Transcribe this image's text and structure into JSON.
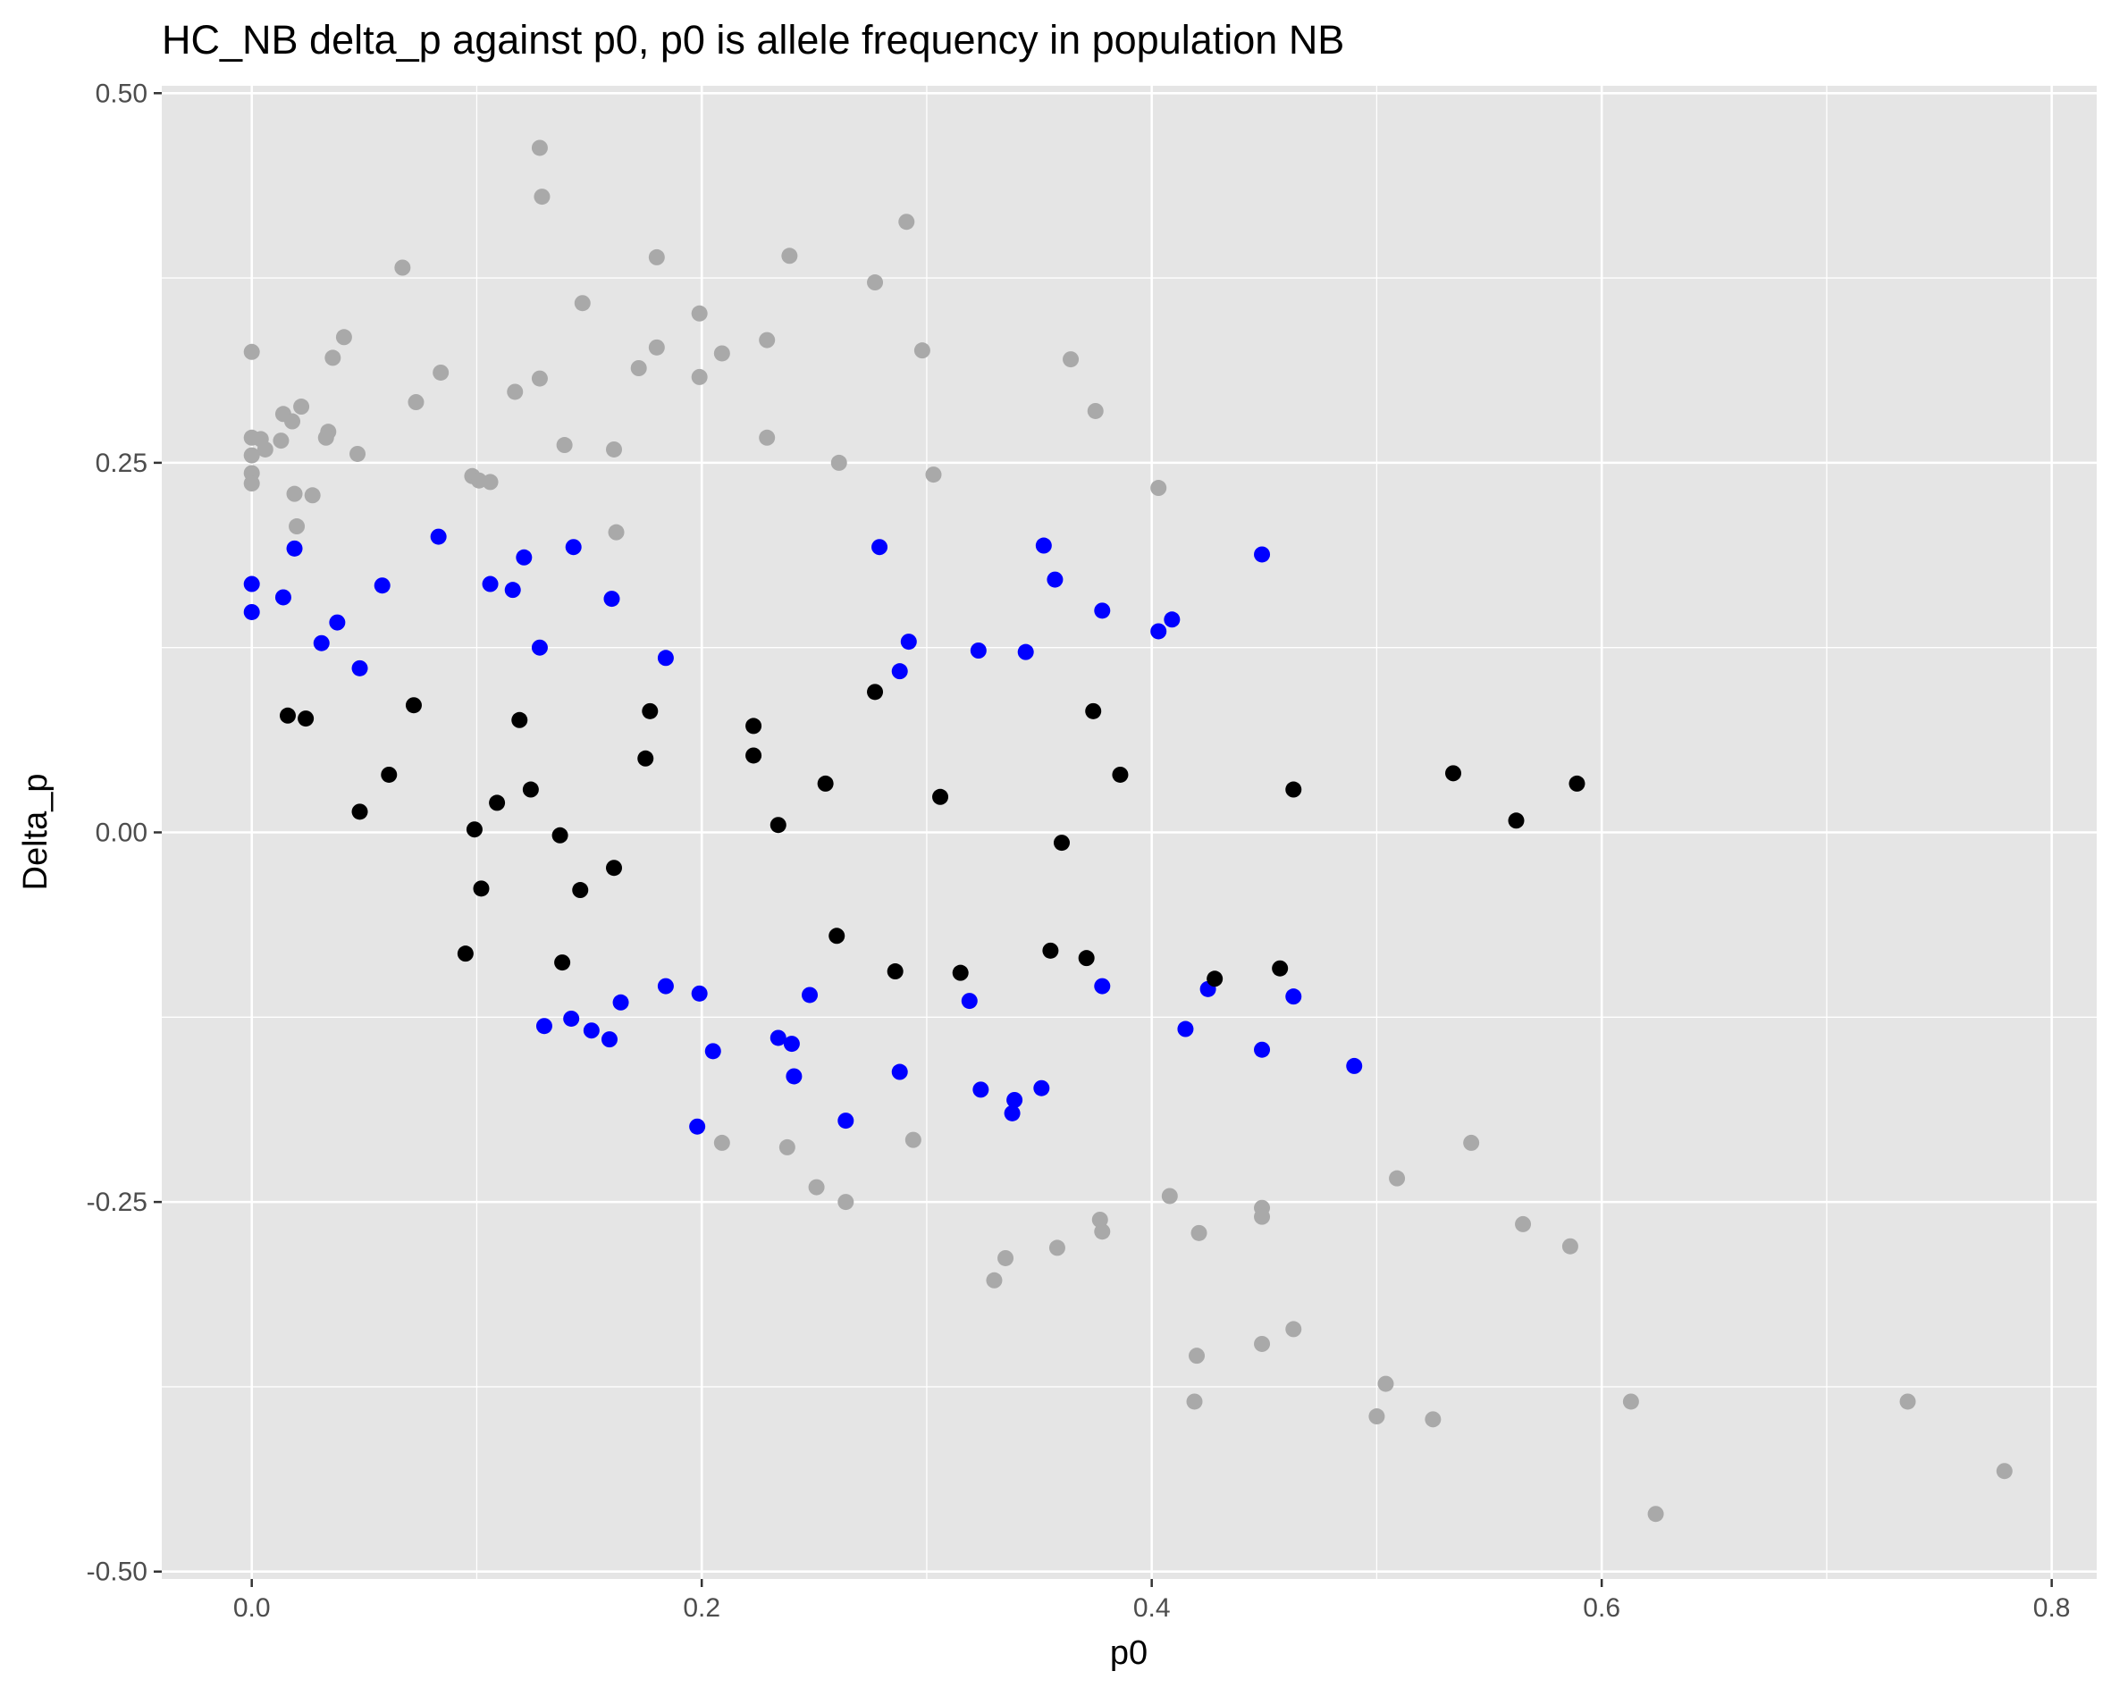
{
  "chart_data": {
    "type": "scatter",
    "title": "HC_NB delta_p against p0, p0 is allele frequency in population NB",
    "xlabel": "p0",
    "ylabel": "Delta_p",
    "xlim": [
      -0.04,
      0.82
    ],
    "ylim": [
      -0.505,
      0.505
    ],
    "x_ticks": [
      {
        "value": 0.0,
        "label": "0.0"
      },
      {
        "value": 0.2,
        "label": "0.2"
      },
      {
        "value": 0.4,
        "label": "0.4"
      },
      {
        "value": 0.6,
        "label": "0.6"
      },
      {
        "value": 0.8,
        "label": "0.8"
      }
    ],
    "y_ticks": [
      {
        "value": 0.5,
        "label": "0.50"
      },
      {
        "value": 0.25,
        "label": "0.25"
      },
      {
        "value": 0.0,
        "label": "0.00"
      },
      {
        "value": -0.25,
        "label": "-0.25"
      },
      {
        "value": -0.5,
        "label": "-0.50"
      }
    ],
    "x_minor": [
      0.1,
      0.3,
      0.5,
      0.7
    ],
    "y_minor": [
      0.375,
      0.125,
      -0.125,
      -0.375
    ],
    "grid": true,
    "panel_color": "#e5e5e5",
    "grid_color": "#ffffff",
    "legend": "none",
    "series": [
      {
        "color": "#a9a9a9",
        "points": [
          [
            0.128,
            0.463
          ],
          [
            0.129,
            0.43
          ],
          [
            0.291,
            0.413
          ],
          [
            0.18,
            0.389
          ],
          [
            0.239,
            0.39
          ],
          [
            0.067,
            0.382
          ],
          [
            0.277,
            0.372
          ],
          [
            0.147,
            0.358
          ],
          [
            0.199,
            0.351
          ],
          [
            0.041,
            0.335
          ],
          [
            0.0,
            0.325
          ],
          [
            0.229,
            0.333
          ],
          [
            0.18,
            0.328
          ],
          [
            0.298,
            0.326
          ],
          [
            0.209,
            0.324
          ],
          [
            0.036,
            0.321
          ],
          [
            0.364,
            0.32
          ],
          [
            0.172,
            0.314
          ],
          [
            0.084,
            0.311
          ],
          [
            0.199,
            0.308
          ],
          [
            0.128,
            0.307
          ],
          [
            0.117,
            0.298
          ],
          [
            0.073,
            0.291
          ],
          [
            0.022,
            0.288
          ],
          [
            0.375,
            0.285
          ],
          [
            0.014,
            0.283
          ],
          [
            0.018,
            0.278
          ],
          [
            0.034,
            0.271
          ],
          [
            0.033,
            0.267
          ],
          [
            0.0,
            0.267
          ],
          [
            0.004,
            0.266
          ],
          [
            0.013,
            0.265
          ],
          [
            0.229,
            0.267
          ],
          [
            0.139,
            0.262
          ],
          [
            0.006,
            0.259
          ],
          [
            0.161,
            0.259
          ],
          [
            0.047,
            0.256
          ],
          [
            0.0,
            0.255
          ],
          [
            0.261,
            0.25
          ],
          [
            0.0,
            0.243
          ],
          [
            0.303,
            0.242
          ],
          [
            0.098,
            0.241
          ],
          [
            0.101,
            0.238
          ],
          [
            0.106,
            0.237
          ],
          [
            0.0,
            0.236
          ],
          [
            0.403,
            0.233
          ],
          [
            0.019,
            0.229
          ],
          [
            0.027,
            0.228
          ],
          [
            0.02,
            0.207
          ],
          [
            0.162,
            0.203
          ],
          [
            0.209,
            -0.21
          ],
          [
            0.238,
            -0.213
          ],
          [
            0.294,
            -0.208
          ],
          [
            0.251,
            -0.24
          ],
          [
            0.264,
            -0.25
          ],
          [
            0.408,
            -0.246
          ],
          [
            0.509,
            -0.234
          ],
          [
            0.542,
            -0.21
          ],
          [
            0.377,
            -0.262
          ],
          [
            0.449,
            -0.254
          ],
          [
            0.449,
            -0.26
          ],
          [
            0.378,
            -0.27
          ],
          [
            0.421,
            -0.271
          ],
          [
            0.565,
            -0.265
          ],
          [
            0.586,
            -0.28
          ],
          [
            0.358,
            -0.281
          ],
          [
            0.335,
            -0.288
          ],
          [
            0.33,
            -0.303
          ],
          [
            0.463,
            -0.336
          ],
          [
            0.449,
            -0.346
          ],
          [
            0.42,
            -0.354
          ],
          [
            0.504,
            -0.373
          ],
          [
            0.419,
            -0.385
          ],
          [
            0.613,
            -0.385
          ],
          [
            0.736,
            -0.385
          ],
          [
            0.5,
            -0.395
          ],
          [
            0.525,
            -0.397
          ],
          [
            0.779,
            -0.432
          ],
          [
            0.624,
            -0.461
          ]
        ]
      },
      {
        "color": "#0000ff",
        "points": [
          [
            0.083,
            0.2
          ],
          [
            0.279,
            0.193
          ],
          [
            0.352,
            0.194
          ],
          [
            0.143,
            0.193
          ],
          [
            0.019,
            0.192
          ],
          [
            0.449,
            0.188
          ],
          [
            0.121,
            0.186
          ],
          [
            0.0,
            0.168
          ],
          [
            0.058,
            0.167
          ],
          [
            0.106,
            0.168
          ],
          [
            0.116,
            0.164
          ],
          [
            0.357,
            0.171
          ],
          [
            0.014,
            0.159
          ],
          [
            0.16,
            0.158
          ],
          [
            0.0,
            0.149
          ],
          [
            0.378,
            0.15
          ],
          [
            0.038,
            0.142
          ],
          [
            0.409,
            0.144
          ],
          [
            0.403,
            0.136
          ],
          [
            0.031,
            0.128
          ],
          [
            0.292,
            0.129
          ],
          [
            0.128,
            0.125
          ],
          [
            0.323,
            0.123
          ],
          [
            0.344,
            0.122
          ],
          [
            0.184,
            0.118
          ],
          [
            0.048,
            0.111
          ],
          [
            0.288,
            0.109
          ],
          [
            0.184,
            -0.104
          ],
          [
            0.199,
            -0.109
          ],
          [
            0.248,
            -0.11
          ],
          [
            0.164,
            -0.115
          ],
          [
            0.319,
            -0.114
          ],
          [
            0.378,
            -0.104
          ],
          [
            0.425,
            -0.106
          ],
          [
            0.463,
            -0.111
          ],
          [
            0.142,
            -0.126
          ],
          [
            0.13,
            -0.131
          ],
          [
            0.151,
            -0.134
          ],
          [
            0.159,
            -0.14
          ],
          [
            0.234,
            -0.139
          ],
          [
            0.24,
            -0.143
          ],
          [
            0.205,
            -0.148
          ],
          [
            0.415,
            -0.133
          ],
          [
            0.449,
            -0.147
          ],
          [
            0.49,
            -0.158
          ],
          [
            0.288,
            -0.162
          ],
          [
            0.241,
            -0.165
          ],
          [
            0.324,
            -0.174
          ],
          [
            0.351,
            -0.173
          ],
          [
            0.339,
            -0.181
          ],
          [
            0.338,
            -0.19
          ],
          [
            0.264,
            -0.195
          ],
          [
            0.198,
            -0.199
          ]
        ]
      },
      {
        "color": "#000000",
        "points": [
          [
            0.277,
            0.095
          ],
          [
            0.072,
            0.086
          ],
          [
            0.374,
            0.082
          ],
          [
            0.177,
            0.082
          ],
          [
            0.016,
            0.079
          ],
          [
            0.024,
            0.077
          ],
          [
            0.119,
            0.076
          ],
          [
            0.223,
            0.072
          ],
          [
            0.223,
            0.052
          ],
          [
            0.175,
            0.05
          ],
          [
            0.061,
            0.039
          ],
          [
            0.386,
            0.039
          ],
          [
            0.534,
            0.04
          ],
          [
            0.255,
            0.033
          ],
          [
            0.589,
            0.033
          ],
          [
            0.124,
            0.029
          ],
          [
            0.463,
            0.029
          ],
          [
            0.306,
            0.024
          ],
          [
            0.109,
            0.02
          ],
          [
            0.048,
            0.014
          ],
          [
            0.562,
            0.008
          ],
          [
            0.234,
            0.005
          ],
          [
            0.099,
            0.002
          ],
          [
            0.137,
            -0.002
          ],
          [
            0.36,
            -0.007
          ],
          [
            0.161,
            -0.024
          ],
          [
            0.102,
            -0.038
          ],
          [
            0.146,
            -0.039
          ],
          [
            0.26,
            -0.07
          ],
          [
            0.355,
            -0.08
          ],
          [
            0.095,
            -0.082
          ],
          [
            0.371,
            -0.085
          ],
          [
            0.138,
            -0.088
          ],
          [
            0.286,
            -0.094
          ],
          [
            0.315,
            -0.095
          ],
          [
            0.457,
            -0.092
          ],
          [
            0.428,
            -0.099
          ]
        ]
      }
    ]
  }
}
